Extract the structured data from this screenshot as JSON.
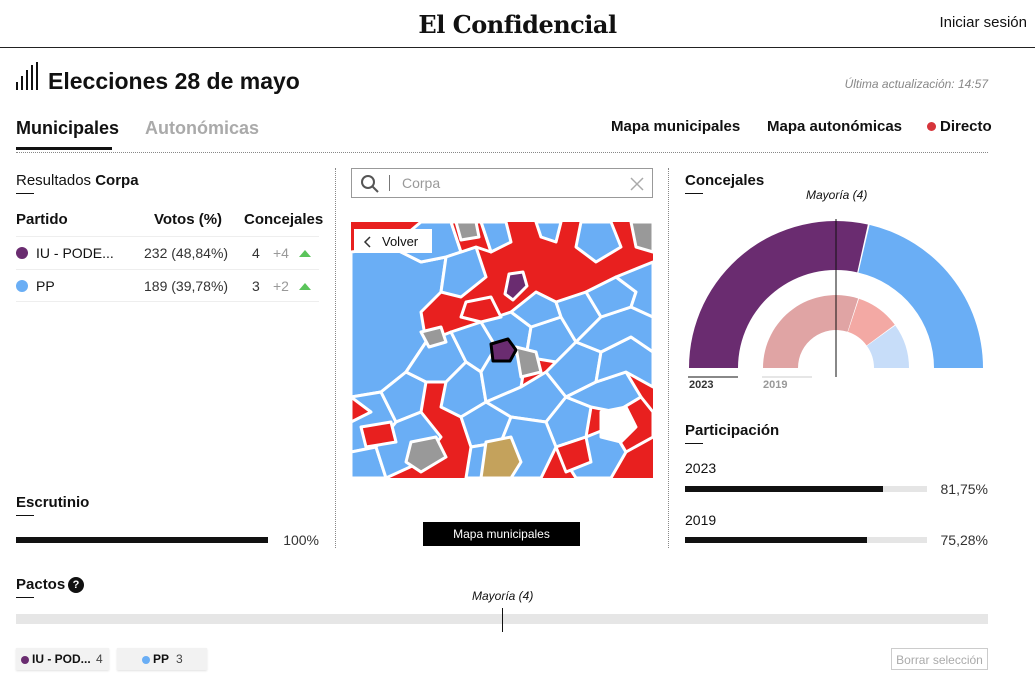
{
  "header": {
    "logo": "El Confidencial",
    "login_label": "Iniciar sesión"
  },
  "page": {
    "title": "Elecciones 28 de mayo",
    "last_updated": "Última actualización: 14:57"
  },
  "tabs": [
    {
      "label": "Municipales",
      "active": true
    },
    {
      "label": "Autonómicas",
      "active": false
    }
  ],
  "nav_links": {
    "municipal_map": "Mapa municipales",
    "regional_map": "Mapa autonómicas",
    "live": "Directo"
  },
  "colors": {
    "iu_podemos": "#6a2c70",
    "pp": "#6aaef5",
    "psoe_map": "#e8201f",
    "live_dot": "#d6353b",
    "growth_arrow": "#5ac45a"
  },
  "results": {
    "title_prefix": "Resultados",
    "municipality": "Corpa",
    "columns": [
      "Partido",
      "Votos (%)",
      "Concejales"
    ],
    "rows": [
      {
        "party": "IU - PODE...",
        "votes": "232 (48,84%)",
        "seats": "4",
        "diff": "+4",
        "trend": "up",
        "color": "#6a2c70"
      },
      {
        "party": "PP",
        "votes": "189 (39,78%)",
        "seats": "3",
        "diff": "+2",
        "trend": "up",
        "color": "#6aaef5"
      }
    ]
  },
  "scrutiny": {
    "title": "Escrutinio",
    "value_label": "100%",
    "fraction": 1.0
  },
  "search": {
    "placeholder": "Corpa",
    "value": ""
  },
  "map": {
    "back_label": "Volver",
    "button_label": "Mapa municipales"
  },
  "councillors": {
    "title": "Concejales",
    "majority_label": "Mayoría (4)",
    "years": [
      "2023",
      "2019"
    ],
    "seats_2023": [
      {
        "party": "IU - PODE...",
        "seats": 4,
        "color": "#6a2c70"
      },
      {
        "party": "PP",
        "seats": 3,
        "color": "#6aaef5"
      }
    ],
    "seats_2019": [
      {
        "seats": 3,
        "color": "#e0a4a4"
      },
      {
        "seats": 1,
        "color": "#f3a9a4"
      },
      {
        "seats": 1,
        "color": "#c7ddf9"
      }
    ]
  },
  "participation": {
    "title": "Participación",
    "rows": [
      {
        "year": "2023",
        "value_label": "81,75%",
        "fraction": 0.8175
      },
      {
        "year": "2019",
        "value_label": "75,28%",
        "fraction": 0.7528
      }
    ]
  },
  "pacts": {
    "title": "Pactos",
    "help_label": "?",
    "majority_label": "Mayoría (4)",
    "chips": [
      {
        "name": "IU - POD...",
        "seats": "4",
        "color": "#6a2c70"
      },
      {
        "name": "PP",
        "seats": "3",
        "color": "#6aaef5"
      }
    ],
    "clear_label": "Borrar selección"
  }
}
